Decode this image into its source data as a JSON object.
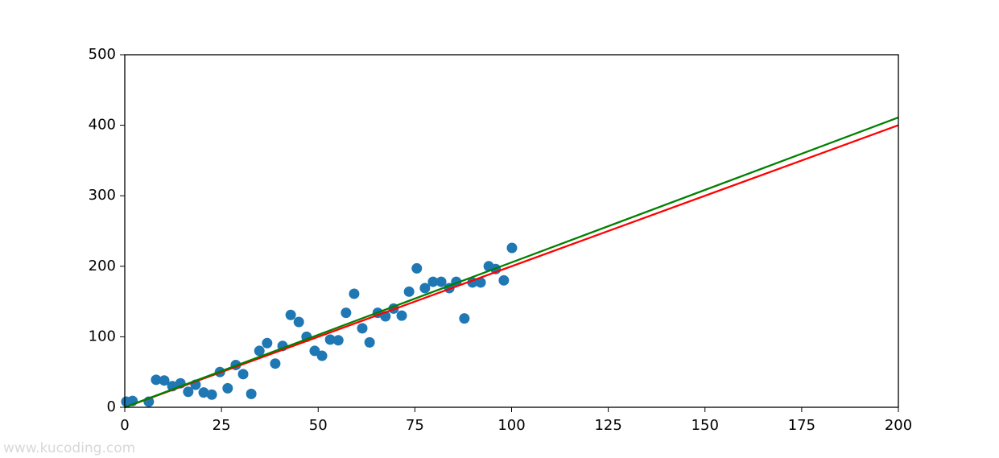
{
  "chart_data": {
    "type": "scatter",
    "xlim": [
      0,
      200
    ],
    "xticks": [
      0,
      25,
      50,
      75,
      100,
      125,
      150,
      175,
      200
    ],
    "ylim": [
      0,
      500
    ],
    "yticks": [
      0,
      100,
      200,
      300,
      400,
      500
    ],
    "watermark": "www.kucoding.com",
    "series": [
      {
        "type": "scatter",
        "color": "#1f77b4",
        "x": [
          0.4,
          2.0,
          6.2,
          8.1,
          10.2,
          12.3,
          14.4,
          16.4,
          18.3,
          20.4,
          22.5,
          24.6,
          26.6,
          28.7,
          30.6,
          32.7,
          34.8,
          36.8,
          38.9,
          40.8,
          42.9,
          45.0,
          47.0,
          49.1,
          51.0,
          53.1,
          55.2,
          57.2,
          59.3,
          61.4,
          63.3,
          65.4,
          67.4,
          69.5,
          71.6,
          73.5,
          75.5,
          77.6,
          79.7,
          81.8,
          83.9,
          85.7,
          87.8,
          89.9,
          92.0,
          94.1,
          95.9,
          98.0,
          100.1
        ],
        "values": [
          8,
          9,
          8,
          39,
          38,
          30,
          34,
          22,
          32,
          21,
          18,
          50,
          27,
          60,
          47,
          19,
          80,
          91,
          62,
          87,
          131,
          121,
          100,
          80,
          73,
          96,
          95,
          134,
          161,
          112,
          92,
          134,
          129,
          140,
          130,
          164,
          197,
          169,
          178,
          178,
          169,
          178,
          126,
          177,
          177,
          200,
          196,
          180,
          226
        ]
      },
      {
        "type": "line",
        "color": "#ff0000",
        "x": [
          0,
          200
        ],
        "values": [
          0,
          400
        ]
      },
      {
        "type": "line",
        "color": "#008000",
        "x": [
          0,
          200
        ],
        "values": [
          0,
          411
        ]
      }
    ]
  }
}
